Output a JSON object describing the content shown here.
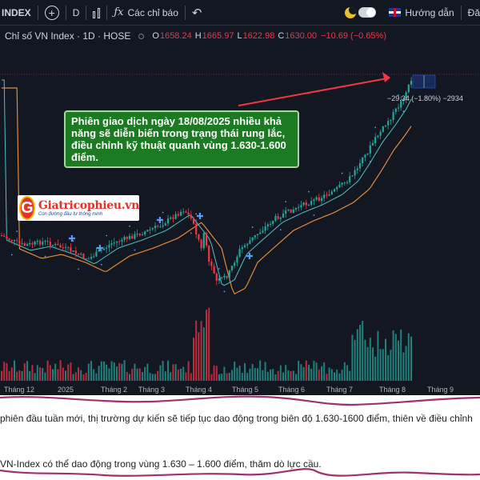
{
  "toolbar": {
    "symbol": "INDEX",
    "interval": "D",
    "indicators_label": "Các chỉ báo",
    "guide_label": "Hướng dẫn",
    "cut_label": "Đă"
  },
  "legend": {
    "title": "Chỉ số VN Index · 1D · HOSE",
    "open_key": "O",
    "open_value": "1658.24",
    "high_key": "H",
    "high_value": "1665.97",
    "low_key": "L",
    "low_value": "1622.98",
    "close_key": "C",
    "close_value": "1630.00",
    "change": "−10.69 (−0.65%)"
  },
  "annotation": {
    "text": "Phiên giao dịch ngày 18/08/2025 nhiều khả năng sẽ diễn biến trong trạng thái rung lắc, điều chỉnh kỹ thuật quanh vùng 1.630-1.600 điểm."
  },
  "logo": {
    "letter": "G",
    "name": "Giatricophieu.vn",
    "tagline": "Con đường đầu tư thông minh"
  },
  "measure_label": "−29.34 (−1.80%) −2934",
  "x_axis": {
    "labels": [
      "Tháng 12",
      "2025",
      "Tháng 2",
      "Tháng 3",
      "Tháng 4",
      "Tháng 5",
      "Tháng 6",
      "Tháng 7",
      "Tháng 8",
      "Tháng 9"
    ]
  },
  "article": {
    "line1": "phiên đầu tuần mới, thị trường dự kiến sẽ tiếp tục dao động trong biên độ 1.630-1600 điểm, thiên về điều chỉnh",
    "line2": "VN-Index có thể dao động trong vùng 1.630 – 1.600 điểm, thăm dò lực cầu."
  },
  "colors": {
    "up": "#26a69a",
    "down": "#f23645",
    "accent": "#2962ff",
    "annotation_bg": "#1b7a22",
    "ma_fast": "#4fc3c8",
    "ma_slow": "#e08a3c",
    "marker": "#a0306e"
  }
}
